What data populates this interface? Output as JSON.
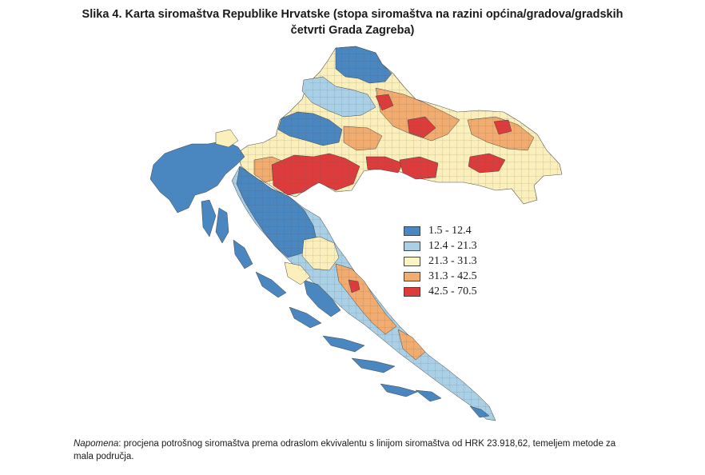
{
  "title": {
    "line1": "Slika 4. Karta siromaštva Republike Hrvatske (stopa siromaštva na razini općina/gradova/gradskih",
    "line2": "četvrti Grada Zagreba)"
  },
  "legend": [
    {
      "label": "1.5 - 12.4",
      "color": "#4a86c0"
    },
    {
      "label": "12.4 - 21.3",
      "color": "#a9d0e6"
    },
    {
      "label": "21.3 - 31.3",
      "color": "#fbf5c4"
    },
    {
      "label": "31.3 - 42.5",
      "color": "#f2ac6f"
    },
    {
      "label": "42.5 - 70.5",
      "color": "#de3c3c"
    }
  ],
  "note": {
    "prefix": "Napomena",
    "text": ": procjena potrošnog siromaštva prema odraslom ekvivalentu s linijom siromaštva od HRK 23.918,62, temeljem metode za mala područja."
  }
}
